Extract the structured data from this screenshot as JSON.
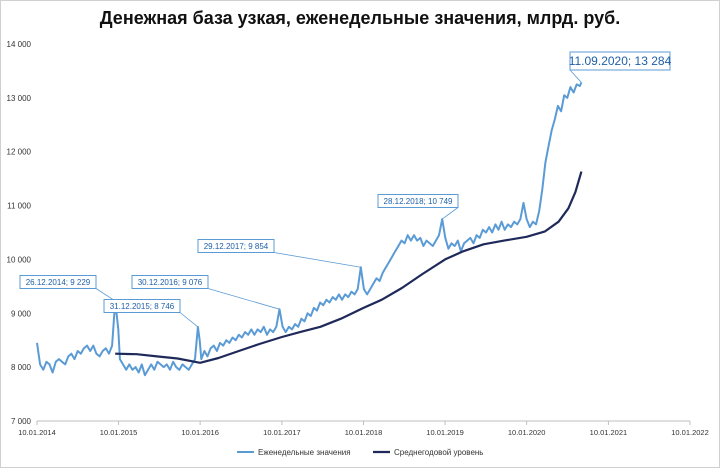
{
  "chart_data": {
    "type": "line",
    "title": "Денежная база узкая, еженедельные значения, млрд. руб.",
    "xlabel": "",
    "ylabel": "",
    "ylim": [
      7000,
      14000
    ],
    "y_ticks": [
      7000,
      8000,
      9000,
      10000,
      11000,
      12000,
      13000,
      14000
    ],
    "y_tick_labels": [
      "7 000",
      "8 000",
      "9 000",
      "10 000",
      "11 000",
      "12 000",
      "13 000",
      "14 000"
    ],
    "x_range": [
      "2014-01-10",
      "2022-01-10"
    ],
    "x_ticks": [
      "2014-01-10",
      "2015-01-10",
      "2016-01-10",
      "2017-01-10",
      "2018-01-10",
      "2019-01-10",
      "2020-01-10",
      "2021-01-10",
      "2022-01-10"
    ],
    "x_tick_labels": [
      "10.01.2014",
      "10.01.2015",
      "10.01.2016",
      "10.01.2017",
      "10.01.2018",
      "10.01.2019",
      "10.01.2020",
      "10.01.2021",
      "10.01.2022"
    ],
    "grid": false,
    "legend_position": "bottom",
    "series": [
      {
        "name": "Еженедельные значения",
        "color": "#5b9bd5",
        "points": [
          [
            "2014-01-10",
            8450
          ],
          [
            "2014-01-24",
            8050
          ],
          [
            "2014-02-07",
            7950
          ],
          [
            "2014-02-21",
            8100
          ],
          [
            "2014-03-07",
            8050
          ],
          [
            "2014-03-21",
            7900
          ],
          [
            "2014-04-04",
            8100
          ],
          [
            "2014-04-18",
            8150
          ],
          [
            "2014-05-02",
            8100
          ],
          [
            "2014-05-16",
            8050
          ],
          [
            "2014-05-30",
            8200
          ],
          [
            "2014-06-13",
            8250
          ],
          [
            "2014-06-27",
            8150
          ],
          [
            "2014-07-11",
            8300
          ],
          [
            "2014-07-25",
            8250
          ],
          [
            "2014-08-08",
            8350
          ],
          [
            "2014-08-22",
            8400
          ],
          [
            "2014-09-05",
            8300
          ],
          [
            "2014-09-19",
            8400
          ],
          [
            "2014-10-03",
            8250
          ],
          [
            "2014-10-17",
            8200
          ],
          [
            "2014-10-31",
            8300
          ],
          [
            "2014-11-14",
            8350
          ],
          [
            "2014-11-28",
            8250
          ],
          [
            "2014-12-12",
            8400
          ],
          [
            "2014-12-26",
            9229
          ],
          [
            "2015-01-09",
            8700
          ],
          [
            "2015-01-16",
            8150
          ],
          [
            "2015-01-30",
            8050
          ],
          [
            "2015-02-13",
            7950
          ],
          [
            "2015-02-27",
            8050
          ],
          [
            "2015-03-13",
            7950
          ],
          [
            "2015-03-27",
            8000
          ],
          [
            "2015-04-10",
            7900
          ],
          [
            "2015-04-24",
            8050
          ],
          [
            "2015-05-08",
            7850
          ],
          [
            "2015-05-22",
            7950
          ],
          [
            "2015-06-05",
            8050
          ],
          [
            "2015-06-19",
            7950
          ],
          [
            "2015-07-03",
            8100
          ],
          [
            "2015-07-17",
            8050
          ],
          [
            "2015-07-31",
            8000
          ],
          [
            "2015-08-14",
            8050
          ],
          [
            "2015-08-28",
            7950
          ],
          [
            "2015-09-11",
            8100
          ],
          [
            "2015-09-25",
            8000
          ],
          [
            "2015-10-09",
            7950
          ],
          [
            "2015-10-23",
            8050
          ],
          [
            "2015-11-06",
            8000
          ],
          [
            "2015-11-20",
            7950
          ],
          [
            "2015-12-04",
            8050
          ],
          [
            "2015-12-18",
            8150
          ],
          [
            "2015-12-31",
            8746
          ],
          [
            "2016-01-08",
            8500
          ],
          [
            "2016-01-15",
            8150
          ],
          [
            "2016-01-29",
            8300
          ],
          [
            "2016-02-12",
            8200
          ],
          [
            "2016-02-26",
            8350
          ],
          [
            "2016-03-11",
            8400
          ],
          [
            "2016-03-25",
            8300
          ],
          [
            "2016-04-08",
            8450
          ],
          [
            "2016-04-22",
            8400
          ],
          [
            "2016-05-06",
            8500
          ],
          [
            "2016-05-20",
            8450
          ],
          [
            "2016-06-03",
            8550
          ],
          [
            "2016-06-17",
            8500
          ],
          [
            "2016-07-01",
            8600
          ],
          [
            "2016-07-15",
            8550
          ],
          [
            "2016-07-29",
            8650
          ],
          [
            "2016-08-12",
            8600
          ],
          [
            "2016-08-26",
            8700
          ],
          [
            "2016-09-09",
            8600
          ],
          [
            "2016-09-23",
            8700
          ],
          [
            "2016-10-07",
            8650
          ],
          [
            "2016-10-21",
            8750
          ],
          [
            "2016-11-04",
            8600
          ],
          [
            "2016-11-18",
            8700
          ],
          [
            "2016-12-02",
            8650
          ],
          [
            "2016-12-16",
            8750
          ],
          [
            "2016-12-30",
            9076
          ],
          [
            "2017-01-13",
            8750
          ],
          [
            "2017-01-27",
            8650
          ],
          [
            "2017-02-10",
            8750
          ],
          [
            "2017-02-24",
            8700
          ],
          [
            "2017-03-10",
            8800
          ],
          [
            "2017-03-24",
            8750
          ],
          [
            "2017-04-07",
            8900
          ],
          [
            "2017-04-21",
            8850
          ],
          [
            "2017-05-05",
            9000
          ],
          [
            "2017-05-19",
            8950
          ],
          [
            "2017-06-02",
            9100
          ],
          [
            "2017-06-16",
            9050
          ],
          [
            "2017-06-30",
            9200
          ],
          [
            "2017-07-14",
            9150
          ],
          [
            "2017-07-28",
            9250
          ],
          [
            "2017-08-11",
            9200
          ],
          [
            "2017-08-25",
            9300
          ],
          [
            "2017-09-08",
            9250
          ],
          [
            "2017-09-22",
            9350
          ],
          [
            "2017-10-06",
            9250
          ],
          [
            "2017-10-20",
            9350
          ],
          [
            "2017-11-03",
            9300
          ],
          [
            "2017-11-17",
            9400
          ],
          [
            "2017-12-01",
            9350
          ],
          [
            "2017-12-15",
            9450
          ],
          [
            "2017-12-29",
            9854
          ],
          [
            "2018-01-12",
            9450
          ],
          [
            "2018-01-26",
            9350
          ],
          [
            "2018-02-09",
            9450
          ],
          [
            "2018-02-23",
            9550
          ],
          [
            "2018-03-09",
            9650
          ],
          [
            "2018-03-23",
            9600
          ],
          [
            "2018-04-06",
            9750
          ],
          [
            "2018-04-20",
            9850
          ],
          [
            "2018-05-04",
            9950
          ],
          [
            "2018-05-18",
            10050
          ],
          [
            "2018-06-01",
            10150
          ],
          [
            "2018-06-15",
            10250
          ],
          [
            "2018-06-29",
            10350
          ],
          [
            "2018-07-13",
            10300
          ],
          [
            "2018-07-27",
            10450
          ],
          [
            "2018-08-10",
            10350
          ],
          [
            "2018-08-24",
            10450
          ],
          [
            "2018-09-07",
            10350
          ],
          [
            "2018-09-21",
            10400
          ],
          [
            "2018-10-05",
            10250
          ],
          [
            "2018-10-19",
            10350
          ],
          [
            "2018-11-02",
            10300
          ],
          [
            "2018-11-16",
            10250
          ],
          [
            "2018-11-30",
            10350
          ],
          [
            "2018-12-14",
            10450
          ],
          [
            "2018-12-28",
            10749
          ],
          [
            "2019-01-11",
            10400
          ],
          [
            "2019-01-25",
            10200
          ],
          [
            "2019-02-08",
            10300
          ],
          [
            "2019-02-22",
            10250
          ],
          [
            "2019-03-08",
            10350
          ],
          [
            "2019-03-22",
            10150
          ],
          [
            "2019-04-05",
            10300
          ],
          [
            "2019-04-19",
            10350
          ],
          [
            "2019-05-03",
            10400
          ],
          [
            "2019-05-17",
            10300
          ],
          [
            "2019-05-31",
            10450
          ],
          [
            "2019-06-14",
            10400
          ],
          [
            "2019-06-28",
            10550
          ],
          [
            "2019-07-12",
            10500
          ],
          [
            "2019-07-26",
            10600
          ],
          [
            "2019-08-09",
            10500
          ],
          [
            "2019-08-23",
            10650
          ],
          [
            "2019-09-06",
            10550
          ],
          [
            "2019-09-20",
            10700
          ],
          [
            "2019-10-04",
            10550
          ],
          [
            "2019-10-18",
            10650
          ],
          [
            "2019-11-01",
            10600
          ],
          [
            "2019-11-15",
            10700
          ],
          [
            "2019-11-29",
            10650
          ],
          [
            "2019-12-13",
            10750
          ],
          [
            "2019-12-27",
            11050
          ],
          [
            "2020-01-10",
            10750
          ],
          [
            "2020-01-24",
            10600
          ],
          [
            "2020-02-07",
            10700
          ],
          [
            "2020-02-21",
            10650
          ],
          [
            "2020-03-06",
            10900
          ],
          [
            "2020-03-20",
            11300
          ],
          [
            "2020-04-03",
            11800
          ],
          [
            "2020-04-17",
            12100
          ],
          [
            "2020-05-01",
            12400
          ],
          [
            "2020-05-15",
            12600
          ],
          [
            "2020-05-29",
            12850
          ],
          [
            "2020-06-12",
            12750
          ],
          [
            "2020-06-26",
            13050
          ],
          [
            "2020-07-10",
            13000
          ],
          [
            "2020-07-24",
            13200
          ],
          [
            "2020-08-07",
            13100
          ],
          [
            "2020-08-21",
            13250
          ],
          [
            "2020-09-04",
            13220
          ],
          [
            "2020-09-11",
            13284
          ]
        ]
      },
      {
        "name": "Среднегодовой уровень",
        "color": "#1f2a5a",
        "points": [
          [
            "2014-12-26",
            8250
          ],
          [
            "2015-04-01",
            8240
          ],
          [
            "2015-07-01",
            8200
          ],
          [
            "2015-10-01",
            8160
          ],
          [
            "2016-01-10",
            8080
          ],
          [
            "2016-04-01",
            8170
          ],
          [
            "2016-07-01",
            8300
          ],
          [
            "2016-10-01",
            8430
          ],
          [
            "2017-01-10",
            8560
          ],
          [
            "2017-04-01",
            8650
          ],
          [
            "2017-07-01",
            8750
          ],
          [
            "2017-10-01",
            8900
          ],
          [
            "2018-01-10",
            9100
          ],
          [
            "2018-04-01",
            9250
          ],
          [
            "2018-07-01",
            9470
          ],
          [
            "2018-10-01",
            9730
          ],
          [
            "2019-01-10",
            10000
          ],
          [
            "2019-04-01",
            10150
          ],
          [
            "2019-07-01",
            10280
          ],
          [
            "2019-10-01",
            10350
          ],
          [
            "2020-01-10",
            10420
          ],
          [
            "2020-04-01",
            10520
          ],
          [
            "2020-06-01",
            10700
          ],
          [
            "2020-07-15",
            10950
          ],
          [
            "2020-08-15",
            11250
          ],
          [
            "2020-09-11",
            11630
          ]
        ]
      }
    ],
    "annotations": [
      {
        "text": "26.12.2014; 9 229",
        "x": "2014-12-26",
        "y": 9229
      },
      {
        "text": "31.12.2015; 8 746",
        "x": "2015-12-31",
        "y": 8746
      },
      {
        "text": "30.12.2016; 9 076",
        "x": "2016-12-30",
        "y": 9076
      },
      {
        "text": "29.12.2017; 9 854",
        "x": "2017-12-29",
        "y": 9854
      },
      {
        "text": "28.12.2018; 10 749",
        "x": "2018-12-28",
        "y": 10749
      },
      {
        "text": "11.09.2020; 13 284",
        "x": "2020-09-11",
        "y": 13284
      }
    ]
  }
}
